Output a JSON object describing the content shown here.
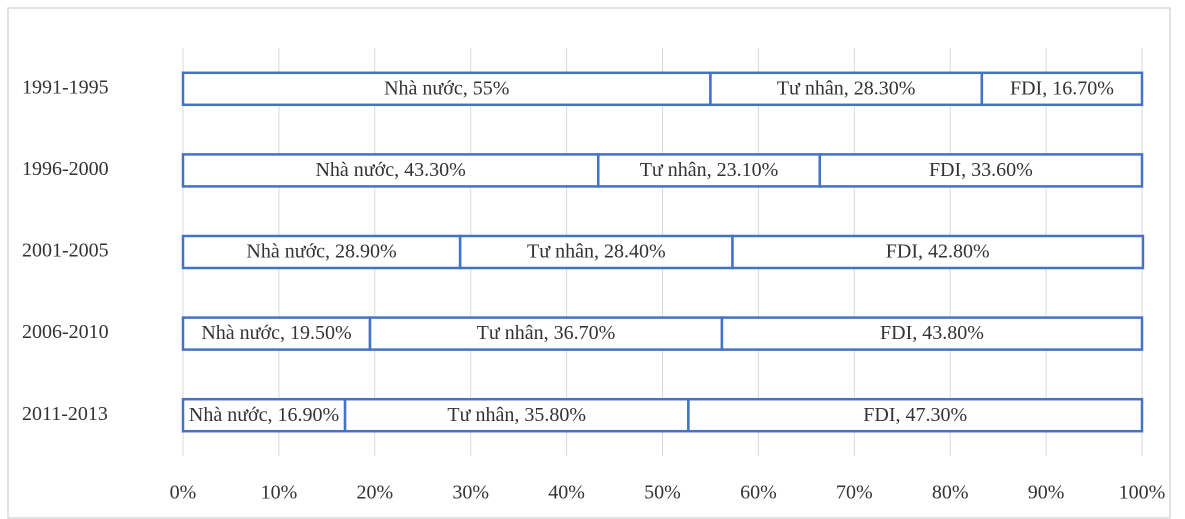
{
  "chart_data": {
    "type": "stacked-bar-horizontal",
    "categories": [
      "1991-1995",
      "1996-2000",
      "2001-2005",
      "2006-2010",
      "2011-2013"
    ],
    "series": [
      {
        "name": "Nhà nước",
        "color": "#4472c4",
        "values": [
          55,
          43.3,
          28.9,
          19.5,
          16.9
        ],
        "value_labels": [
          "Nhà nước, 55%",
          "Nhà nước, 43.30%",
          "Nhà nước, 28.90%",
          "Nhà nước, 19.50%",
          "Nhà nước, 16.90%"
        ]
      },
      {
        "name": "Tư nhân",
        "color": "#4472c4",
        "values": [
          28.3,
          23.1,
          28.4,
          36.7,
          35.8
        ],
        "value_labels": [
          "Tư nhân, 28.30%",
          "Tư nhân, 23.10%",
          "Tư nhân, 28.40%",
          "Tư nhân, 36.70%",
          "Tư nhân, 35.80%"
        ]
      },
      {
        "name": "FDI",
        "color": "#4472c4",
        "values": [
          16.7,
          33.6,
          42.8,
          43.8,
          47.3
        ],
        "value_labels": [
          "FDI, 16.70%",
          "FDI, 33.60%",
          "FDI, 42.80%",
          "FDI, 43.80%",
          "FDI, 47.30%"
        ]
      }
    ],
    "xlim": [
      0,
      100
    ],
    "xticks": [
      {
        "value": 0,
        "label": "0%"
      },
      {
        "value": 10,
        "label": "10%"
      },
      {
        "value": 20,
        "label": "20%"
      },
      {
        "value": 30,
        "label": "30%"
      },
      {
        "value": 40,
        "label": "40%"
      },
      {
        "value": 50,
        "label": "50%"
      },
      {
        "value": 60,
        "label": "60%"
      },
      {
        "value": 70,
        "label": "70%"
      },
      {
        "value": 80,
        "label": "80%"
      },
      {
        "value": 90,
        "label": "90%"
      },
      {
        "value": 100,
        "label": "100%"
      }
    ],
    "grid": true
  }
}
